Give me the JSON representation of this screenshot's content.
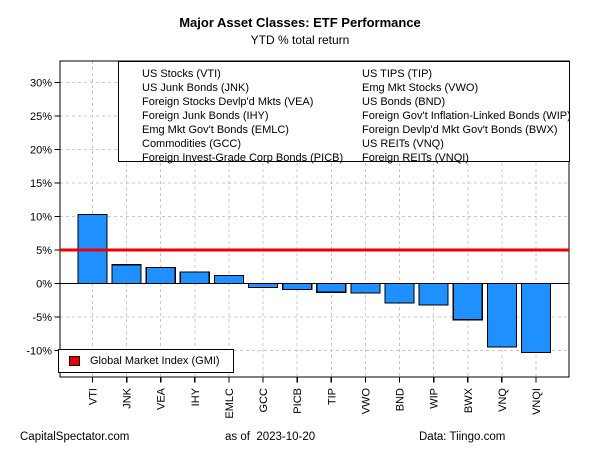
{
  "title": "Major Asset Classes: ETF Performance",
  "subtitle": "YTD % total return",
  "footer": {
    "left": "CapitalSpectator.com",
    "center": "as of  2023-10-20",
    "right": "Data: Tiingo.com"
  },
  "gmi_legend": {
    "label": "Global Market Index (GMI)",
    "color": "#ee0000"
  },
  "etf_legend": {
    "left_column": [
      "US Stocks (VTI)",
      "US Junk Bonds (JNK)",
      "Foreign Stocks Devlp'd Mkts (VEA)",
      "Foreign Junk Bonds (IHY)",
      "Emg Mkt Gov't Bonds (EMLC)",
      "Commodities (GCC)",
      "Foreign Invest-Grade Corp Bonds (PICB)"
    ],
    "right_column": [
      "US TIPS (TIP)",
      "Emg Mkt Stocks (VWO)",
      "US Bonds (BND)",
      "Foreign Gov't Inflation-Linked Bonds (WIP)",
      "Foreign Devlp'd Mkt Gov't Bonds (BWX)",
      "US REITs (VNQ)",
      "Foreign REITs (VNQI)"
    ]
  },
  "chart_data": {
    "type": "bar",
    "title": "Major Asset Classes: ETF Performance",
    "subtitle": "YTD % total return",
    "xlabel": "",
    "ylabel": "YTD % total return",
    "categories": [
      "VTI",
      "JNK",
      "VEA",
      "IHY",
      "EMLC",
      "GCC",
      "PICB",
      "TIP",
      "VWO",
      "BND",
      "WIP",
      "BWX",
      "VNQ",
      "VNQI"
    ],
    "values": [
      10.3,
      2.8,
      2.4,
      1.7,
      1.2,
      -0.6,
      -0.9,
      -1.3,
      -1.4,
      -2.9,
      -3.2,
      -5.4,
      -9.5,
      -10.3
    ],
    "y_ticks": [
      30,
      25,
      20,
      15,
      10,
      5,
      0,
      -5,
      -10
    ],
    "y_tick_labels": [
      "30%",
      "25%",
      "20%",
      "15%",
      "10%",
      "5%",
      "0%",
      "-5%",
      "-10%"
    ],
    "ylim": [
      -14,
      33.2
    ],
    "grid": true,
    "bar_color": "#1e90ff",
    "reference_line": {
      "value": 5,
      "color": "#ee0000",
      "label": "Global Market Index (GMI)"
    },
    "legend_position": "bottom-left"
  }
}
